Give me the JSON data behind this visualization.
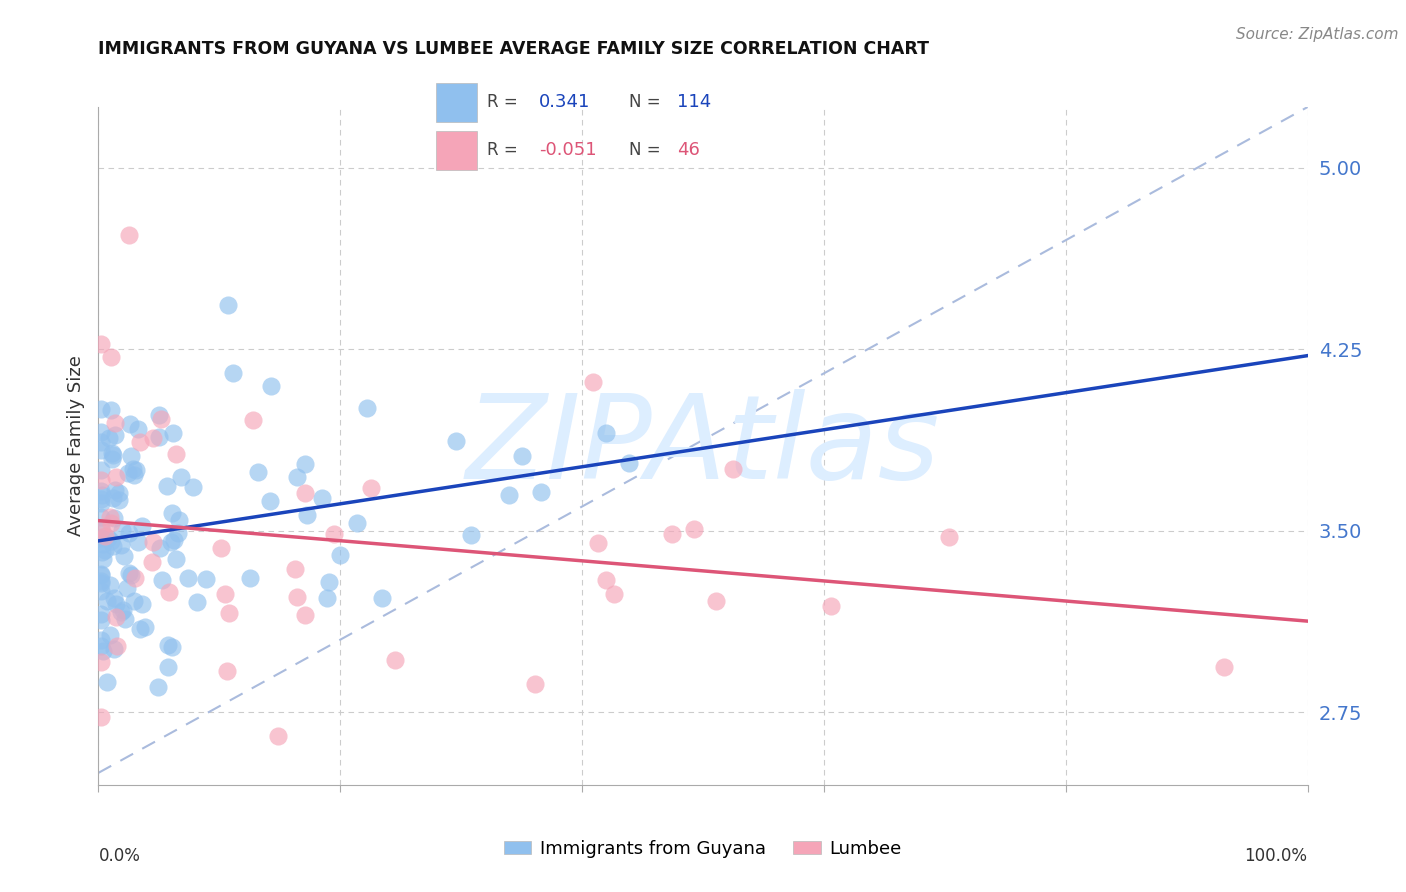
{
  "title": "IMMIGRANTS FROM GUYANA VS LUMBEE AVERAGE FAMILY SIZE CORRELATION CHART",
  "source": "Source: ZipAtlas.com",
  "ylabel": "Average Family Size",
  "ytick_values": [
    2.75,
    3.5,
    4.25,
    5.0
  ],
  "ytick_labels": [
    "2.75",
    "3.50",
    "4.25",
    "5.00"
  ],
  "xtick_positions": [
    0.0,
    0.2,
    0.4,
    0.6,
    0.8,
    1.0
  ],
  "xmin": 0.0,
  "xmax": 1.0,
  "ymin": 2.45,
  "ymax": 5.25,
  "blue_R": 0.341,
  "blue_N": 114,
  "pink_R": -0.051,
  "pink_N": 46,
  "blue_color": "#90C0EE",
  "pink_color": "#F5A5B8",
  "blue_line_color": "#1A44BB",
  "pink_line_color": "#DD5577",
  "ref_line_color": "#AABBDD",
  "grid_color": "#CCCCCC",
  "watermark_text": "ZIPAtlas",
  "watermark_color": "#DDEEFF",
  "legend_blue_label": "Immigrants from Guyana",
  "legend_pink_label": "Lumbee",
  "right_axis_color": "#4477CC",
  "title_fontsize": 12.5,
  "source_fontsize": 11,
  "scatter_size": 170,
  "scatter_alpha": 0.65,
  "blue_scatter_seed": 42,
  "pink_scatter_seed": 15,
  "blue_R_text": "0.341",
  "blue_N_text": "114",
  "pink_R_text": "-0.051",
  "pink_N_text": "46"
}
